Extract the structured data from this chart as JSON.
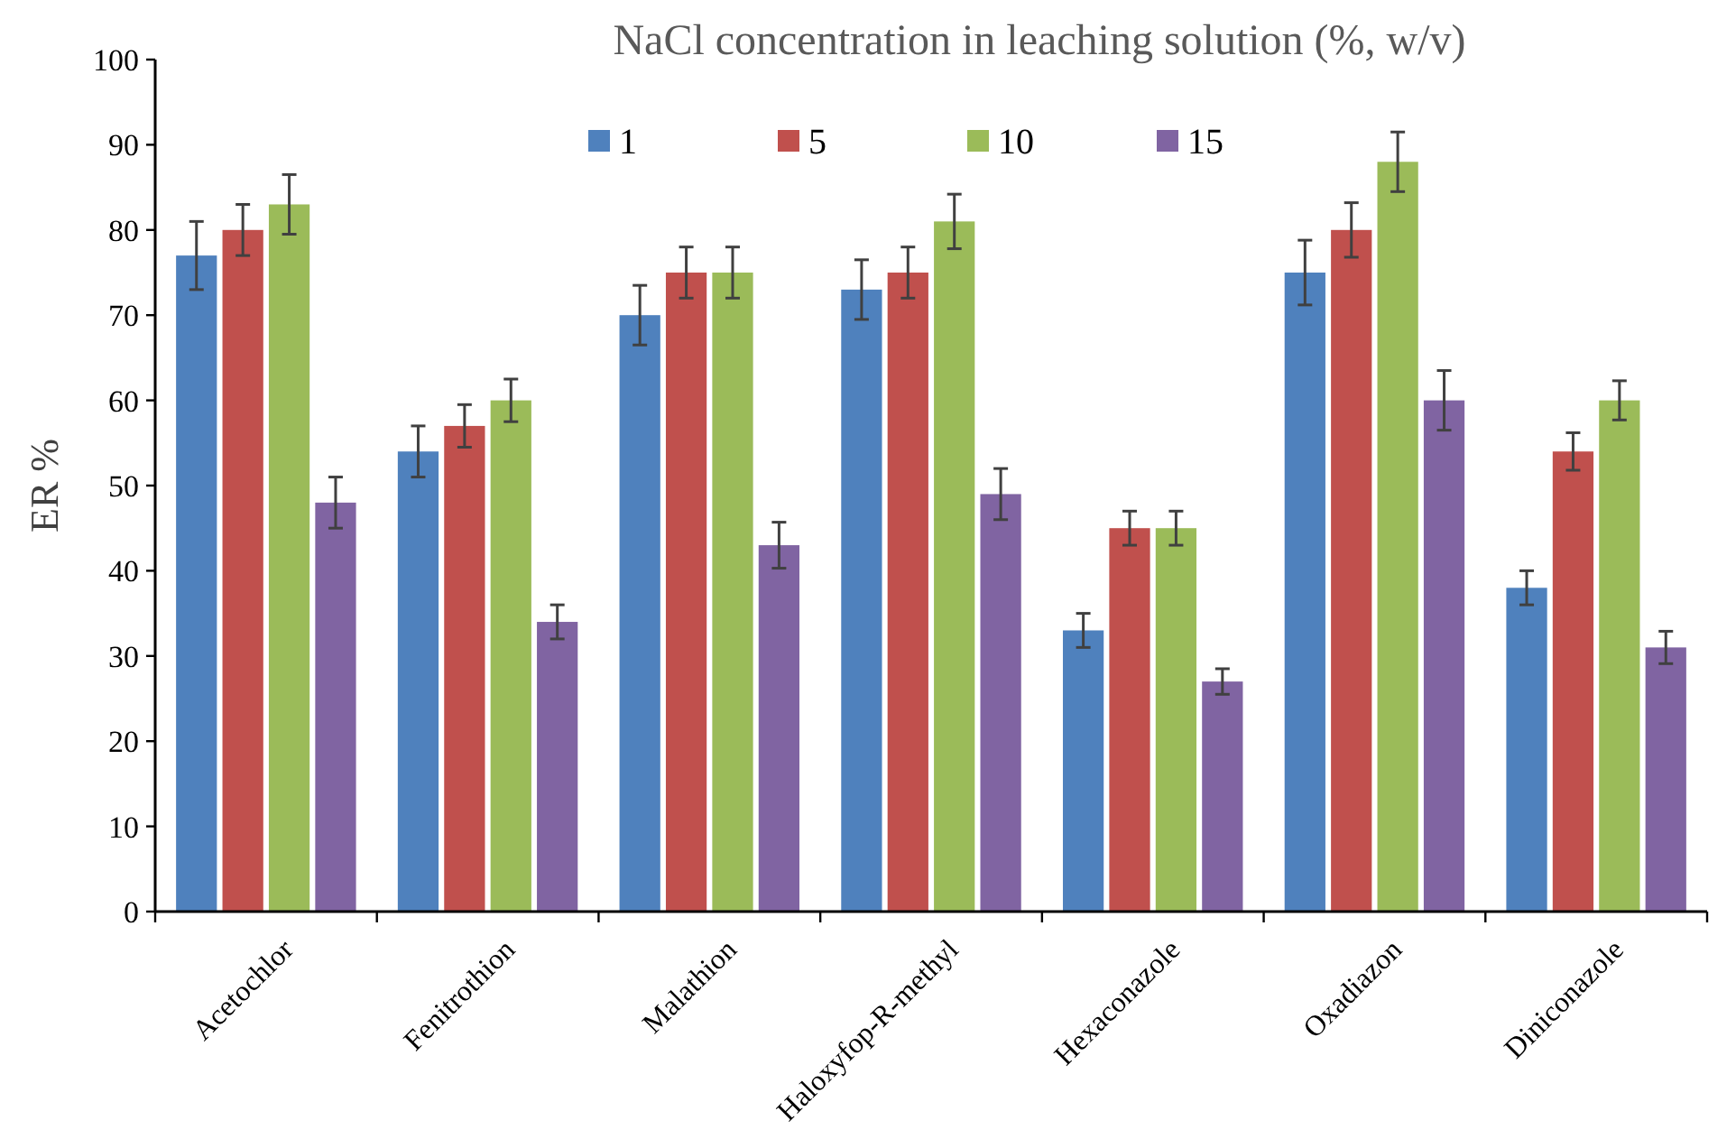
{
  "chart_data": {
    "type": "bar",
    "title": "NaCl concentration in leaching solution (%, w/v)",
    "ylabel": "ER %",
    "categories": [
      "Acetochlor",
      "Fenitrothion",
      "Malathion",
      "Haloxyfop-R-methyl",
      "Hexaconazole",
      "Oxadiazon",
      "Diniconazole"
    ],
    "series": [
      {
        "name": "1",
        "color": "#4f81bd",
        "values": [
          77,
          54,
          70,
          73,
          33,
          75,
          38
        ],
        "errors": [
          4,
          3,
          3.5,
          3.5,
          2,
          3.8,
          2
        ]
      },
      {
        "name": "5",
        "color": "#c0504d",
        "values": [
          80,
          57,
          75,
          75,
          45,
          80,
          54
        ],
        "errors": [
          3,
          2.5,
          3,
          3,
          2,
          3.2,
          2.2
        ]
      },
      {
        "name": "10",
        "color": "#9bbb59",
        "values": [
          83,
          60,
          75,
          81,
          45,
          88,
          60
        ],
        "errors": [
          3.5,
          2.5,
          3,
          3.2,
          2,
          3.5,
          2.3
        ]
      },
      {
        "name": "15",
        "color": "#8064a2",
        "values": [
          48,
          34,
          43,
          49,
          27,
          60,
          31
        ],
        "errors": [
          3,
          2,
          2.7,
          3,
          1.5,
          3.5,
          1.9
        ]
      }
    ],
    "ylim": [
      0,
      100
    ],
    "yticks": [
      0,
      10,
      20,
      30,
      40,
      50,
      60,
      70,
      80,
      90,
      100
    ],
    "grid": false,
    "legend": "top"
  }
}
